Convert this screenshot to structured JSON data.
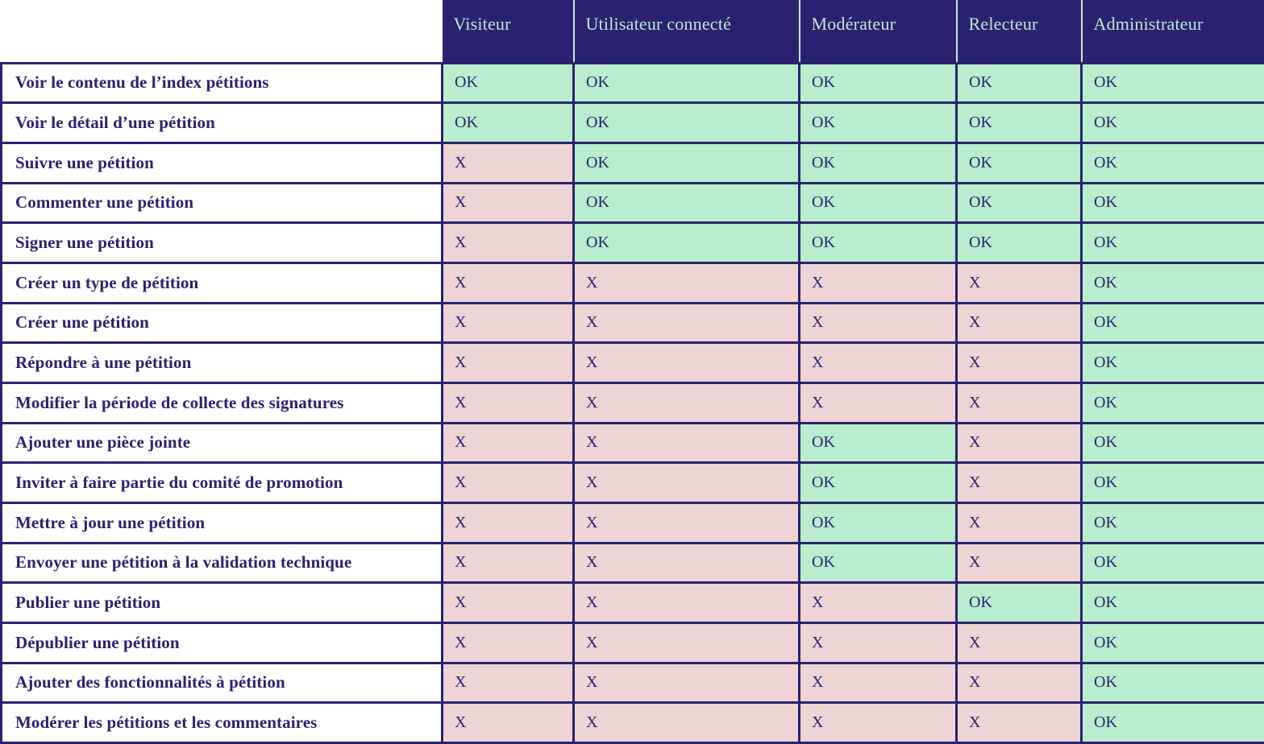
{
  "colors": {
    "navy": "#2b2171",
    "green": "#b9edcd",
    "pink": "#eed4d5",
    "header-text": "#bfe9d6",
    "separator": "#bfe9d6",
    "white": "#ffffff"
  },
  "chart_data": {
    "type": "table",
    "title": "",
    "columns": [
      "Visiteur",
      "Utilisateur connecté",
      "Modérateur",
      "Relecteur",
      "Administrateur"
    ],
    "rows": [
      {
        "label": "Voir le contenu de l’index pétitions",
        "values": [
          "OK",
          "OK",
          "OK",
          "OK",
          "OK"
        ]
      },
      {
        "label": "Voir le détail d’une pétition",
        "values": [
          "OK",
          "OK",
          "OK",
          "OK",
          "OK"
        ]
      },
      {
        "label": "Suivre une pétition",
        "values": [
          "X",
          "OK",
          "OK",
          "OK",
          "OK"
        ]
      },
      {
        "label": "Commenter une pétition",
        "values": [
          "X",
          "OK",
          "OK",
          "OK",
          "OK"
        ]
      },
      {
        "label": "Signer une pétition",
        "values": [
          "X",
          "OK",
          "OK",
          "OK",
          "OK"
        ]
      },
      {
        "label": "Créer un type de pétition",
        "values": [
          "X",
          "X",
          "X",
          "X",
          "OK"
        ]
      },
      {
        "label": "Créer une pétition",
        "values": [
          "X",
          "X",
          "X",
          "X",
          "OK"
        ]
      },
      {
        "label": "Répondre à une pétition",
        "values": [
          "X",
          "X",
          "X",
          "X",
          "OK"
        ]
      },
      {
        "label": "Modifier la période de collecte des signatures",
        "values": [
          "X",
          "X",
          "X",
          "X",
          "OK"
        ]
      },
      {
        "label": "Ajouter une pièce jointe",
        "values": [
          "X",
          "X",
          "OK",
          "X",
          "OK"
        ]
      },
      {
        "label": "Inviter à faire partie du comité de promotion",
        "values": [
          "X",
          "X",
          "OK",
          "X",
          "OK"
        ]
      },
      {
        "label": "Mettre à jour une pétition",
        "values": [
          "X",
          "X",
          "OK",
          "X",
          "OK"
        ]
      },
      {
        "label": "Envoyer une pétition à la validation technique",
        "values": [
          "X",
          "X",
          "OK",
          "X",
          "OK"
        ]
      },
      {
        "label": "Publier une pétition",
        "values": [
          "X",
          "X",
          "X",
          "OK",
          "OK"
        ]
      },
      {
        "label": "Dépublier une pétition",
        "values": [
          "X",
          "X",
          "X",
          "X",
          "OK"
        ]
      },
      {
        "label": "Ajouter des fonctionnalités à pétition",
        "values": [
          "X",
          "X",
          "X",
          "X",
          "OK"
        ]
      },
      {
        "label": "Modérer les pétitions et les commentaires",
        "values": [
          "X",
          "X",
          "X",
          "X",
          "OK"
        ]
      }
    ]
  }
}
